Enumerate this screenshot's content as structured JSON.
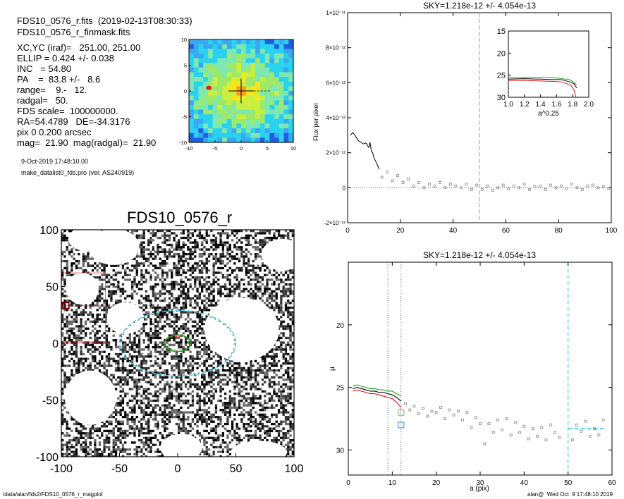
{
  "header": {
    "line1": "FDS10_0576_r.fits  (2019-02-13T08:30:33)",
    "line2": "FDS10_0576_r_finmask.fits",
    "params": [
      "XC,YC (iraf)=   251.00, 251.00",
      "ELLIP = 0.424 +/- 0.038",
      "INC   = 54.80",
      "PA    =  83.8 +/-   8.6",
      "range=    9.-   12.",
      "radgal=   50.",
      "FDS scale=  100000000.",
      "RA=54.4789   DE=-34.3176",
      "pix 0 0.200 arcsec",
      "mag=  21.90  mag(radgal)=  21.90"
    ],
    "date": "9-Oct-2019 17:48:10.00",
    "program": "make_datalist0_fds.pro (ver. AS240919)"
  },
  "footer": {
    "path": "/data/alan/fds2/FDS10_0576_r_magplot",
    "stamp": "alan@  Wed Oct  9 17:48:10 2019"
  },
  "colors": {
    "contour_low": "#0a2aa8",
    "contour_mid": "#2ad2f0",
    "contour_high": "#f4e81a",
    "sky_line": "#4fd2e8",
    "green": "#1fa21f",
    "red": "#e01010",
    "ellipse_outline": "#4fd2e8",
    "box_red": "#e03030"
  },
  "chart_data": [
    {
      "type": "heatmap",
      "title": "",
      "xlim": [
        -10,
        10
      ],
      "ylim": [
        -10,
        10
      ],
      "x_ticks": [
        "-10",
        "-5",
        "0",
        "5",
        "10"
      ],
      "y_ticks": [
        "10",
        "5",
        "0",
        "-5",
        "-10"
      ],
      "note": "contour map of central region with crosshair at (0,0)"
    },
    {
      "type": "heatmap",
      "title": "FDS10_0576_r",
      "xlim": [
        -100,
        100
      ],
      "ylim": [
        -100,
        100
      ],
      "x_ticks": [
        "-100",
        "-50",
        "0",
        "50",
        "100"
      ],
      "y_ticks": [
        "100",
        "50",
        "0",
        "-50",
        "-100"
      ],
      "galaxy_ellipse": {
        "x": 0,
        "y": 0,
        "a": 10,
        "b": 6
      },
      "sky_ellipse": {
        "x": 0,
        "y": 0,
        "a": 50,
        "b": 29
      },
      "masked_blobs": [
        {
          "x": -55,
          "y": 85
        },
        {
          "x": -82,
          "y": 48
        },
        {
          "x": -45,
          "y": 22
        },
        {
          "x": -78,
          "y": 92
        },
        {
          "x": 55,
          "y": 12
        },
        {
          "x": -75,
          "y": -48
        },
        {
          "x": 3,
          "y": -92
        },
        {
          "x": 70,
          "y": -96
        },
        {
          "x": 90,
          "y": 78
        }
      ]
    },
    {
      "type": "line",
      "title": "SKY=1.218e-12 +/- 4.054e-13",
      "xlabel": "",
      "ylabel": "Flux per pixel",
      "xlim": [
        0,
        100
      ],
      "ylim": [
        -2e-12,
        1e-11
      ],
      "x_ticks": [
        "0",
        "20",
        "40",
        "60",
        "80",
        "100"
      ],
      "y_ticks": [
        "-2×10⁻¹²",
        "0",
        "2×10⁻¹²",
        "4×10⁻¹²",
        "6×10⁻¹²",
        "8×10⁻¹²",
        "1×10⁻¹¹"
      ],
      "y_tick_values": [
        -2e-12,
        0,
        2e-12,
        4e-12,
        6e-12,
        8e-12,
        1e-11
      ],
      "x_tick_values": [
        0,
        20,
        40,
        60,
        80,
        100
      ],
      "sky_radius": 50,
      "profile_line": {
        "x": [
          1,
          2,
          3,
          4,
          5,
          6,
          7,
          8,
          8.5,
          9,
          9.5,
          10,
          11,
          12
        ],
        "y": [
          3e-12,
          3.15e-12,
          2.95e-12,
          2.7e-12,
          2.6e-12,
          2.5e-12,
          2.55e-12,
          2.3e-12,
          2.6e-12,
          2.1e-12,
          2e-12,
          1.7e-12,
          1.4e-12,
          1.05e-12
        ]
      },
      "points": {
        "x": [
          13,
          15,
          17,
          19,
          21,
          23,
          25,
          27,
          29,
          31,
          33,
          35,
          37,
          39,
          41,
          43,
          45,
          47,
          49,
          51,
          53,
          55,
          57,
          59,
          61,
          63,
          65,
          67,
          69,
          71,
          73,
          75,
          77,
          79,
          81,
          83,
          85,
          87,
          89,
          91,
          93,
          95,
          97,
          99
        ],
        "y": [
          6e-13,
          9e-13,
          4e-13,
          7e-13,
          3e-13,
          5e-13,
          1e-13,
          3e-13,
          0.0,
          2e-13,
          1e-13,
          3e-13,
          0.0,
          2e-13,
          1e-13,
          0.0,
          2e-13,
          -1e-13,
          1.5e-13,
          -1e-13,
          1e-13,
          -1.5e-13,
          0.0,
          1.5e-13,
          -5e-14,
          1e-13,
          0.0,
          2e-13,
          -1e-13,
          5e-14,
          1e-13,
          -1e-13,
          1.5e-13,
          0.0,
          1e-13,
          -5e-14,
          2e-13,
          0.0,
          -1e-13,
          1e-13,
          1.5e-13,
          0.0,
          5e-14,
          -5e-14
        ]
      },
      "inset": {
        "xlabel": "a^0.25",
        "xlim": [
          1.0,
          2.0
        ],
        "ylim": [
          15,
          30
        ],
        "x_ticks": [
          "1.0",
          "1.2",
          "1.4",
          "1.6",
          "1.8",
          "2.0"
        ],
        "x_tick_values": [
          1.0,
          1.2,
          1.4,
          1.6,
          1.8,
          2.0
        ],
        "y_ticks": [
          "15",
          "20",
          "25",
          "30"
        ],
        "y_tick_values": [
          15,
          20,
          25,
          30
        ],
        "series": [
          {
            "color": "green",
            "x": [
              1.0,
              1.2,
              1.4,
              1.55,
              1.65,
              1.7,
              1.74,
              1.78,
              1.82,
              1.85
            ],
            "y": [
              25.6,
              25.5,
              25.5,
              25.6,
              25.7,
              25.9,
              25.9,
              26.2,
              26.7,
              27.2
            ]
          },
          {
            "color": "black",
            "x": [
              1.0,
              1.2,
              1.4,
              1.55,
              1.65,
              1.7,
              1.74,
              1.78,
              1.82,
              1.85
            ],
            "y": [
              25.9,
              25.8,
              25.9,
              26.0,
              26.0,
              26.2,
              26.4,
              26.6,
              27.0,
              27.9
            ]
          },
          {
            "color": "red",
            "x": [
              1.0,
              1.2,
              1.4,
              1.55,
              1.65,
              1.7,
              1.74,
              1.78,
              1.82,
              1.84
            ],
            "y": [
              26.2,
              26.2,
              26.3,
              26.4,
              26.5,
              26.7,
              27.0,
              27.3,
              28.5,
              30.0
            ]
          }
        ]
      }
    },
    {
      "type": "line",
      "title": "SKY=1.218e-12 +/- 4.054e-13",
      "xlabel": "a (pix)",
      "ylabel": "μ",
      "xlim": [
        0,
        60
      ],
      "ylim": [
        32,
        15
      ],
      "x_ticks": [
        "0",
        "10",
        "20",
        "30",
        "40",
        "50",
        "60"
      ],
      "x_tick_values": [
        0,
        10,
        20,
        30,
        40,
        50,
        60
      ],
      "y_ticks": [
        "20",
        "25",
        "30"
      ],
      "y_tick_values": [
        20,
        25,
        30
      ],
      "range_lines": [
        9,
        12
      ],
      "sky_radius": 50,
      "sky_level": {
        "x": [
          50,
          58.5
        ],
        "y": 28.3
      },
      "square_markers": [
        {
          "x": 12,
          "y": 27.0,
          "color": "green"
        },
        {
          "x": 12,
          "y": 28.0,
          "color": "blue"
        }
      ],
      "series": [
        {
          "color": "green",
          "x": [
            1,
            2,
            3,
            4,
            5,
            6,
            7,
            8,
            9,
            10,
            11,
            12
          ],
          "y": [
            24.9,
            24.8,
            24.9,
            25.0,
            25.1,
            25.1,
            25.2,
            25.2,
            25.3,
            25.3,
            25.5,
            25.7
          ]
        },
        {
          "color": "black",
          "x": [
            1,
            2,
            3,
            4,
            5,
            6,
            7,
            8,
            9,
            10,
            11,
            12
          ],
          "y": [
            25.1,
            25.0,
            25.1,
            25.2,
            25.3,
            25.3,
            25.4,
            25.4,
            25.5,
            25.6,
            25.8,
            26.1
          ]
        },
        {
          "color": "red",
          "x": [
            1,
            2,
            3,
            4,
            5,
            6,
            7,
            8,
            9,
            10,
            11,
            12
          ],
          "y": [
            25.3,
            25.2,
            25.3,
            25.4,
            25.5,
            25.5,
            25.6,
            25.7,
            25.8,
            25.9,
            26.2,
            26.6
          ]
        }
      ],
      "points": {
        "x": [
          13,
          14,
          15,
          16,
          17,
          18,
          19,
          20,
          21,
          22,
          23,
          24,
          25,
          26,
          27,
          28,
          29,
          30,
          31,
          32,
          33,
          34,
          35,
          36,
          37,
          38,
          39,
          40,
          41,
          42,
          43,
          44,
          45,
          46,
          47,
          48,
          51,
          52,
          53,
          54,
          55,
          56,
          57,
          58
        ],
        "y": [
          26.3,
          26.8,
          26.5,
          27.1,
          26.7,
          27.3,
          26.9,
          27.0,
          26.6,
          27.5,
          26.8,
          27.2,
          26.9,
          27.6,
          27.0,
          28.2,
          27.4,
          27.9,
          29.5,
          27.9,
          28.6,
          27.6,
          28.4,
          27.5,
          28.8,
          27.8,
          28.6,
          28.1,
          29.1,
          28.3,
          28.9,
          28.2,
          29.2,
          28.0,
          28.6,
          29.0,
          29.2,
          28.0,
          28.5,
          27.7,
          28.9,
          28.3,
          28.8,
          27.6
        ]
      }
    }
  ]
}
